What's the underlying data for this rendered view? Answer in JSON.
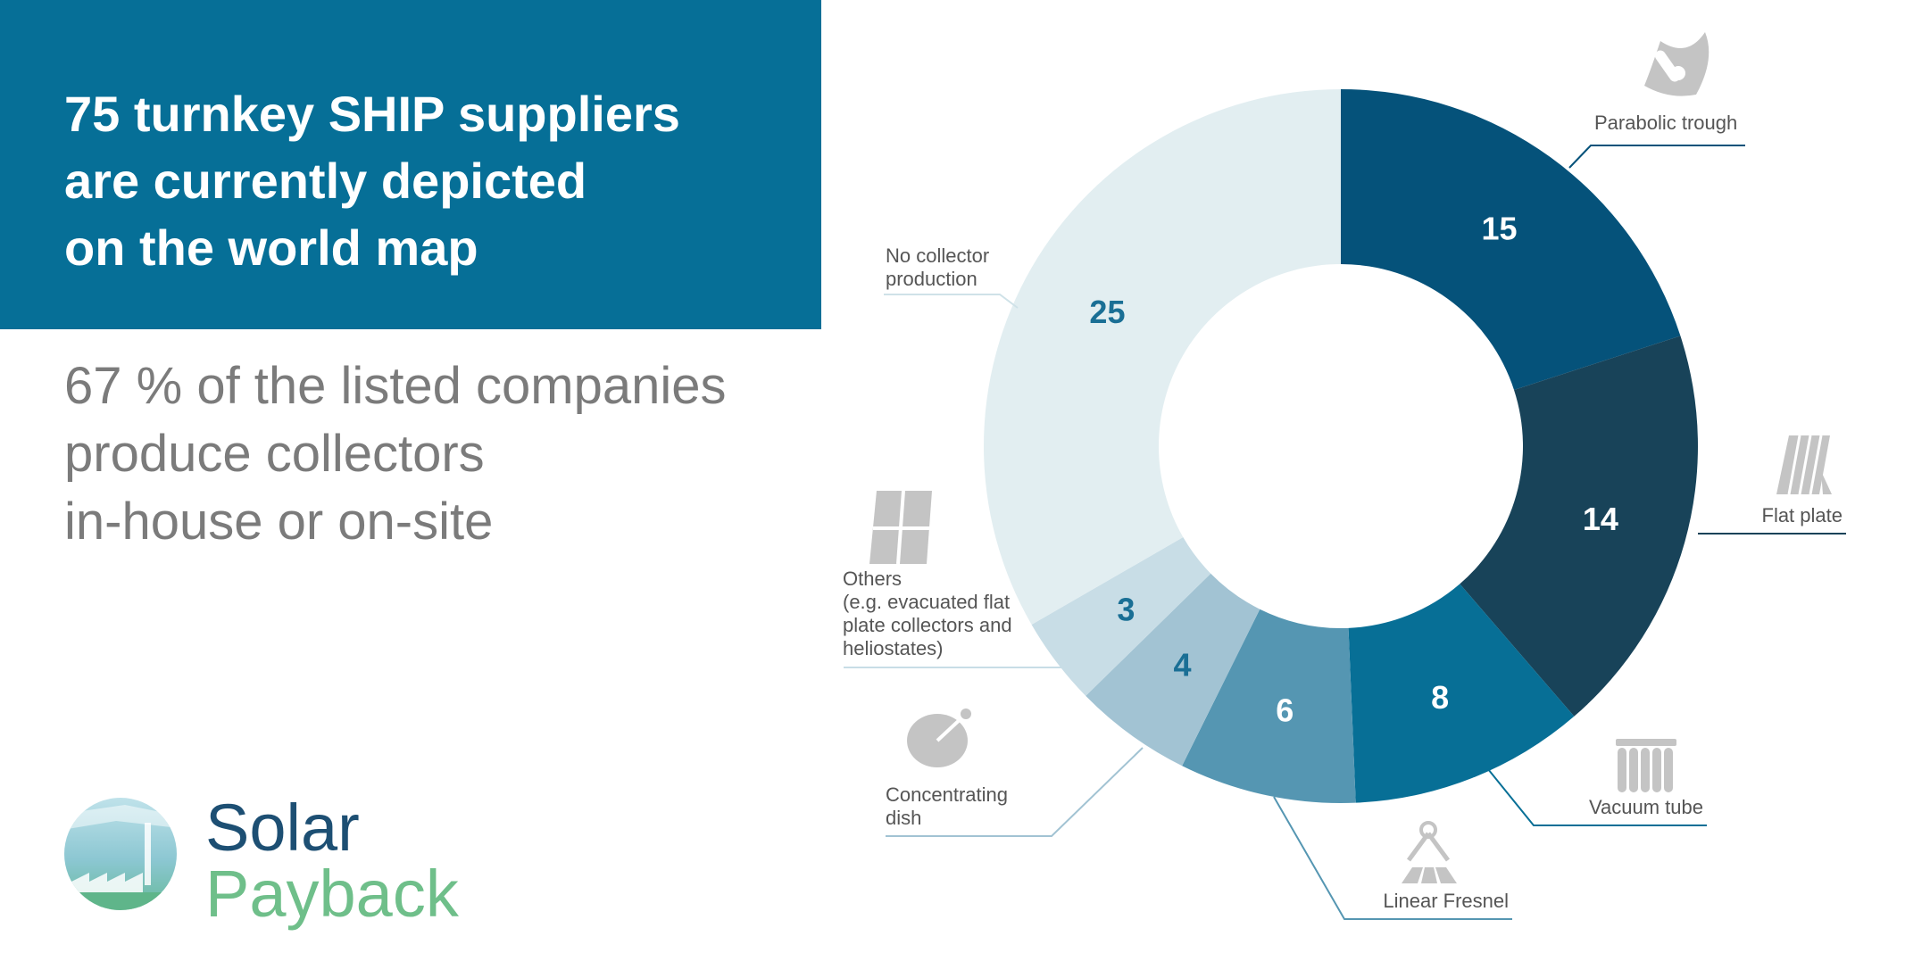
{
  "header": {
    "title_lines": [
      "75 turnkey SHIP suppliers",
      "are currently depicted",
      "on the world map"
    ],
    "subtitle_lines": [
      "67 % of the listed companies",
      "produce collectors",
      "in-house or on-site"
    ]
  },
  "logo": {
    "line1": "Solar",
    "line2": "Payback",
    "color1": "#1d4f73",
    "color2": "#6fbf8a"
  },
  "chart_data": {
    "type": "pie",
    "title": "",
    "start": "top",
    "direction": "clockwise",
    "slices": [
      {
        "name": "Parabolic trough",
        "label_lines": [
          "Parabolic trough"
        ],
        "value": 15,
        "color": "#05527a",
        "text_color": "#ffffff",
        "icon": "parabolic-trough-icon"
      },
      {
        "name": "Flat plate",
        "label_lines": [
          "Flat plate"
        ],
        "value": 14,
        "color": "#184359",
        "text_color": "#ffffff",
        "icon": "flat-plate-icon"
      },
      {
        "name": "Vacuum tube",
        "label_lines": [
          "Vacuum tube"
        ],
        "value": 8,
        "color": "#076f96",
        "text_color": "#ffffff",
        "icon": "vacuum-tube-icon"
      },
      {
        "name": "Linear Fresnel",
        "label_lines": [
          "Linear Fresnel"
        ],
        "value": 6,
        "color": "#5596b2",
        "text_color": "#ffffff",
        "icon": "linear-fresnel-icon"
      },
      {
        "name": "Concentrating dish",
        "label_lines": [
          "Concentrating",
          "dish"
        ],
        "value": 4,
        "color": "#a2c3d3",
        "text_color": "#1a6f95",
        "icon": "concentrating-dish-icon"
      },
      {
        "name": "Others",
        "label_lines": [
          "Others",
          "(e.g. evacuated flat",
          "plate collectors and",
          "heliostates)"
        ],
        "value": 3,
        "color": "#c8dde6",
        "text_color": "#1a6f95",
        "icon": "others-collector-icon"
      },
      {
        "name": "No collector production",
        "label_lines": [
          "No collector",
          "production"
        ],
        "value": 25,
        "color": "#e2eef1",
        "text_color": "#1a6f95",
        "icon": ""
      }
    ]
  }
}
